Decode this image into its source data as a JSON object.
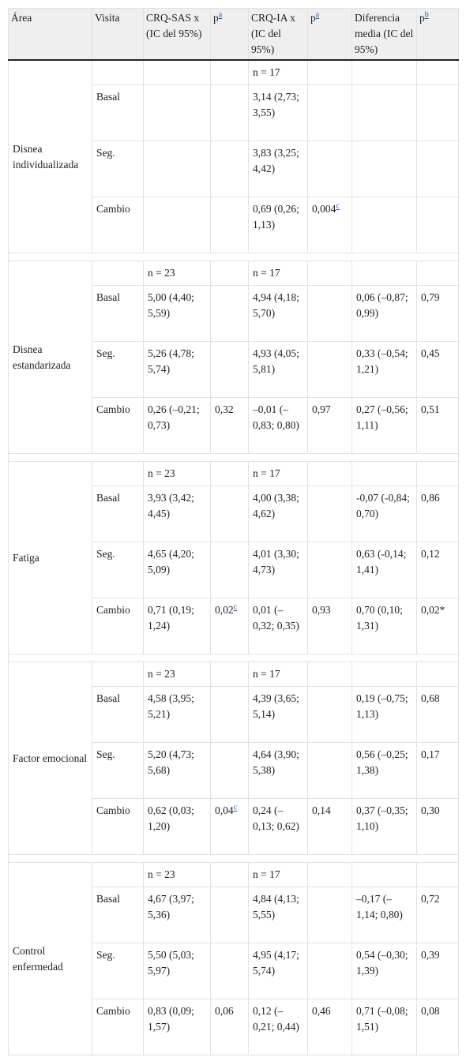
{
  "table": {
    "header": [
      "Área",
      "Visita",
      {
        "text": "CRQ-SAS x (IC del 95%)"
      },
      {
        "text": "p",
        "sup": "a"
      },
      {
        "text": "CRQ-IA x (IC del 95%)"
      },
      {
        "text": "p",
        "sup": "a"
      },
      "Diferencia media (IC del 95%)",
      {
        "text": "p",
        "sup": "b"
      }
    ],
    "groups": [
      {
        "area": "Disnea individualizada",
        "rows": [
          [
            null,
            null,
            null,
            "n = 17",
            null,
            null,
            null
          ],
          [
            "Basal",
            null,
            null,
            "3,14 (2,73; 3,55)",
            null,
            null,
            null
          ],
          [
            "Seg.",
            null,
            null,
            "3,83 (3,25; 4,42)",
            null,
            null,
            null
          ],
          [
            "Cambio",
            null,
            null,
            "0,69 (0,26; 1,13)",
            {
              "text": "0,004",
              "sup": "c"
            },
            null,
            null
          ]
        ]
      },
      {
        "area": "Disnea estandarizada",
        "rows": [
          [
            null,
            "n = 23",
            null,
            "n = 17",
            null,
            null,
            null
          ],
          [
            "Basal",
            "5,00 (4,40; 5,59)",
            null,
            "4,94 (4,18; 5,70)",
            null,
            "0,06 (–0,87; 0,99)",
            "0,79"
          ],
          [
            "Seg.",
            "5,26 (4,78; 5,74)",
            null,
            "4,93 (4,05; 5,81)",
            null,
            "0,33 (–0,54; 1,21)",
            "0,45"
          ],
          [
            "Cambio",
            "0,26 (–0,21; 0,73)",
            "0,32",
            "–0,01 (–0,83; 0,80)",
            "0,97",
            "0,27 (–0,56; 1,11)",
            "0,51"
          ]
        ]
      },
      {
        "area": "Fatiga",
        "rows": [
          [
            null,
            "n = 23",
            null,
            "n = 17",
            null,
            null,
            null
          ],
          [
            "Basal",
            "3,93 (3,42; 4,45)",
            null,
            "4,00 (3,38; 4,62)",
            null,
            "-0,07 (-0,84; 0,70)",
            "0,86"
          ],
          [
            "Seg.",
            "4,65 (4,20; 5,09)",
            null,
            "4,01 (3,30; 4,73)",
            null,
            "0,63 (-0,14; 1,41)",
            "0,12"
          ],
          [
            "Cambio",
            "0,71 (0,19; 1,24)",
            {
              "text": "0,02",
              "sup": "c"
            },
            "0,01 (–0,32; 0,35)",
            "0,93",
            "0,70 (0,10; 1,31)",
            "0,02*"
          ]
        ]
      },
      {
        "area": "Factor emocional",
        "rows": [
          [
            null,
            "n = 23",
            null,
            "n = 17",
            null,
            null,
            null
          ],
          [
            "Basal",
            "4,58 (3,95; 5,21)",
            null,
            "4,39 (3,65; 5,14)",
            null,
            "0,19 (–0,75; 1,13)",
            "0,68"
          ],
          [
            "Seg.",
            "5,20 (4,73; 5,68)",
            null,
            "4,64 (3,90; 5,38)",
            null,
            "0,56 (–0,25; 1,38)",
            "0,17"
          ],
          [
            "Cambio",
            "0,62 (0,03; 1,20)",
            {
              "text": "0,04",
              "sup": "c"
            },
            "0,24 (–0,13; 0,62)",
            "0,14",
            "0,37 (–0,35; 1,10)",
            "0,30"
          ]
        ]
      },
      {
        "area": "Control enfermedad",
        "rows": [
          [
            null,
            "n = 23",
            null,
            "n = 17",
            null,
            null,
            null
          ],
          [
            "Basal",
            "4,67 (3,97; 5,36)",
            null,
            "4,84 (4,13; 5,55)",
            null,
            "–0,17 (–1,14; 0,80)",
            "0,72"
          ],
          [
            "Seg.",
            "5,50 (5,03; 5,97)",
            null,
            "4,95 (4,17; 5,74)",
            null,
            "0,54 (–0,30; 1,39)",
            "0,39"
          ],
          [
            "Cambio",
            "0,83 (0,09; 1,57)",
            "0,06",
            "0,12 (–0,21; 0,44)",
            "0,46",
            "0,71 (–0,08; 1,51)",
            "0,08"
          ]
        ]
      }
    ]
  }
}
